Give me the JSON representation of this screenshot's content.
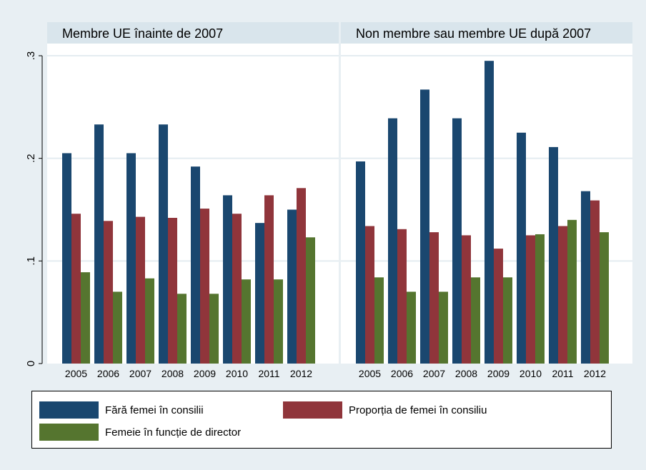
{
  "chart_data": [
    {
      "type": "bar",
      "title": "Membre UE înainte de 2007",
      "categories": [
        "2005",
        "2006",
        "2007",
        "2008",
        "2009",
        "2010",
        "2011",
        "2012"
      ],
      "series": [
        {
          "name": "Fără femei în consilii",
          "values": [
            0.205,
            0.233,
            0.205,
            0.233,
            0.192,
            0.164,
            0.137,
            0.15
          ]
        },
        {
          "name": "Proporția de femei în consiliu",
          "values": [
            0.146,
            0.139,
            0.143,
            0.142,
            0.151,
            0.146,
            0.164,
            0.171
          ]
        },
        {
          "name": "Femeie în funcție de director",
          "values": [
            0.089,
            0.07,
            0.083,
            0.068,
            0.068,
            0.082,
            0.082,
            0.123
          ]
        }
      ],
      "ylim": [
        0,
        0.3
      ],
      "yticks": [
        0,
        0.1,
        0.2,
        0.3
      ],
      "ytick_labels": [
        "0",
        ".1",
        ".2",
        ".3"
      ],
      "grid": true
    },
    {
      "type": "bar",
      "title": "Non membre sau membre UE după 2007",
      "categories": [
        "2005",
        "2006",
        "2007",
        "2008",
        "2009",
        "2010",
        "2011",
        "2012"
      ],
      "series": [
        {
          "name": "Fără femei în consilii",
          "values": [
            0.197,
            0.239,
            0.267,
            0.239,
            0.295,
            0.225,
            0.211,
            0.168
          ]
        },
        {
          "name": "Proporția de femei în consiliu",
          "values": [
            0.134,
            0.131,
            0.128,
            0.125,
            0.112,
            0.125,
            0.134,
            0.159
          ]
        },
        {
          "name": "Femeie în funcție de director",
          "values": [
            0.084,
            0.07,
            0.07,
            0.084,
            0.084,
            0.126,
            0.14,
            0.128
          ]
        }
      ],
      "ylim": [
        0,
        0.3
      ],
      "yticks": [
        0,
        0.1,
        0.2,
        0.3
      ],
      "ytick_labels": [
        "0",
        ".1",
        ".2",
        ".3"
      ],
      "grid": true
    }
  ],
  "colors": {
    "series": [
      "#1a476f",
      "#90353b",
      "#55752f"
    ],
    "panel_header": "#d9e5ec",
    "plot_bg": "#ffffff",
    "gridline": "#e4ecf1",
    "page_bg": "#e8eff3"
  },
  "legend": {
    "placement": "bottom",
    "items": [
      {
        "label": "Fără femei în consilii"
      },
      {
        "label": "Proporția de femei în consiliu"
      },
      {
        "label": "Femeie în funcție de director"
      }
    ]
  }
}
